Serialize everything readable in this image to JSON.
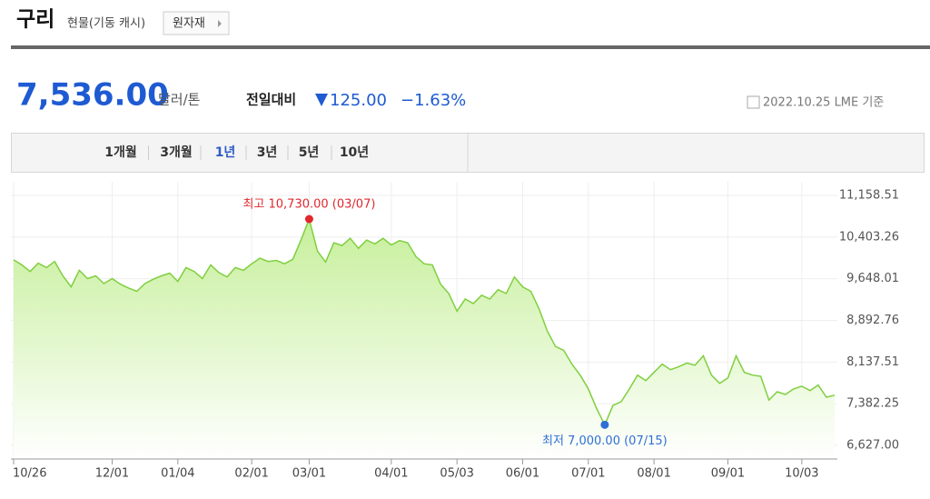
{
  "header": {
    "title": "구리",
    "subtitle": "현물(기동 캐시)",
    "button": "원자재",
    "price": "7,536.00",
    "unit": "달러/톤",
    "change_label": "전일대비",
    "change": "125.00",
    "change_pct": "−1.63%",
    "date": "2022.10.25 LME 기준"
  },
  "periods": [
    {
      "label": "1개월"
    },
    {
      "label": "3개월"
    },
    {
      "label": "1년",
      "selected": true
    },
    {
      "label": "3년"
    },
    {
      "label": "5년"
    },
    {
      "label": "10년"
    }
  ],
  "chart_data": {
    "type": "area",
    "color": "#7fcf3e",
    "fill_color": "#c6ef9a",
    "max_label": "최고 10,730.00 (03/07)",
    "max_color": "#e0282e",
    "min_label": "최저 7,000.00 (07/15)",
    "min_color": "#2f6fd6",
    "categories": [
      "10/26",
      null,
      null,
      null,
      null,
      null,
      null,
      null,
      null,
      null,
      null,
      null,
      "12/01",
      null,
      null,
      null,
      null,
      null,
      null,
      null,
      "01/04",
      null,
      null,
      null,
      null,
      null,
      null,
      null,
      null,
      "02/01",
      null,
      null,
      null,
      null,
      null,
      null,
      "03/01",
      null,
      null,
      null,
      null,
      null,
      null,
      null,
      null,
      null,
      "04/01",
      null,
      null,
      null,
      null,
      null,
      null,
      null,
      "05/03",
      null,
      null,
      null,
      null,
      null,
      null,
      null,
      "06/01",
      null,
      null,
      null,
      null,
      null,
      null,
      null,
      "07/01",
      null,
      null,
      null,
      null,
      null,
      null,
      null,
      "08/01",
      null,
      null,
      null,
      null,
      null,
      null,
      null,
      null,
      "09/01",
      null,
      null,
      null,
      null,
      null,
      null,
      null,
      null,
      "10/03",
      null,
      null,
      null,
      null
    ],
    "values": [
      9990,
      9900,
      9780,
      9930,
      9850,
      9960,
      9700,
      9500,
      9800,
      9650,
      9700,
      9560,
      9650,
      9550,
      9480,
      9420,
      9560,
      9640,
      9700,
      9750,
      9600,
      9850,
      9780,
      9650,
      9900,
      9760,
      9680,
      9850,
      9800,
      9920,
      10020,
      9960,
      9980,
      9920,
      10000,
      10350,
      10730,
      10150,
      9950,
      10300,
      10250,
      10380,
      10200,
      10350,
      10280,
      10380,
      10260,
      10340,
      10300,
      10050,
      9920,
      9900,
      9550,
      9380,
      9060,
      9280,
      9200,
      9350,
      9280,
      9450,
      9380,
      9680,
      9500,
      9420,
      9100,
      8700,
      8420,
      8350,
      8100,
      7900,
      7650,
      7300,
      7000,
      7350,
      7420,
      7650,
      7900,
      7800,
      7950,
      8100,
      8000,
      8050,
      8120,
      8080,
      8250,
      7900,
      7750,
      7850,
      8250,
      7950,
      7900,
      7880,
      7450,
      7600,
      7550,
      7650,
      7700,
      7620,
      7720,
      7500,
      7536
    ],
    "ylim": [
      6627,
      11158.51
    ],
    "yticks": [
      {
        "value": 6627,
        "label": "6,627.00"
      },
      {
        "value": 7382.25,
        "label": "7,382.25"
      },
      {
        "value": 8137.51,
        "label": "8,137.51"
      },
      {
        "value": 8892.76,
        "label": "8,892.76"
      },
      {
        "value": 9648.01,
        "label": "9,648.01"
      },
      {
        "value": 10403.26,
        "label": "10,403.26"
      },
      {
        "value": 11158.51,
        "label": "11,158.51"
      }
    ],
    "grid": true
  }
}
